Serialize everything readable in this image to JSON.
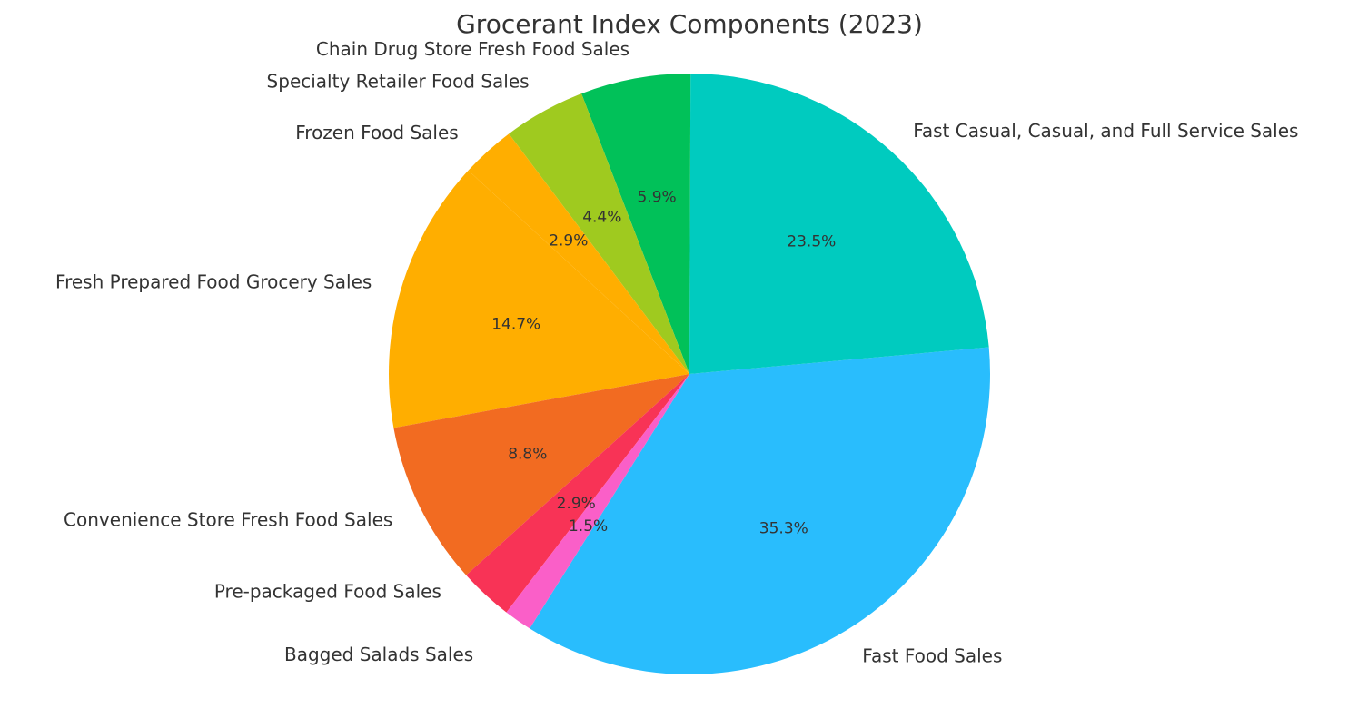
{
  "chart_data": {
    "type": "pie",
    "title": "Grocerant Index Components (2023)",
    "slices": [
      {
        "label": "Fast Food Sales",
        "value": 35.3,
        "pct_label": "35.3%",
        "color": "#29BDFD"
      },
      {
        "label": "Fast Casual, Casual, and Full Service Sales",
        "value": 23.5,
        "pct_label": "23.5%",
        "color": "#00CBBF"
      },
      {
        "label": "Chain Drug Store Fresh Food Sales",
        "value": 5.9,
        "pct_label": "5.9%",
        "color": "#01C159"
      },
      {
        "label": "Specialty Retailer Food Sales",
        "value": 4.4,
        "pct_label": "4.4%",
        "color": "#9FCA1F"
      },
      {
        "label": "Frozen Food Sales",
        "value": 2.9,
        "pct_label": "2.9%",
        "color": "#FFAE00"
      },
      {
        "label": "Fresh Prepared Food Grocery Sales",
        "value": 14.7,
        "pct_label": "14.7%",
        "color": "#FFAE00"
      },
      {
        "label": "Convenience Store Fresh Food Sales",
        "value": 8.8,
        "pct_label": "8.8%",
        "color": "#F26B21"
      },
      {
        "label": "Pre-packaged Food Sales",
        "value": 2.9,
        "pct_label": "2.9%",
        "color": "#F83356"
      },
      {
        "label": "Bagged Salads Sales",
        "value": 1.5,
        "pct_label": "1.5%",
        "color": "#FA5FC8"
      }
    ],
    "start_angle_deg": 237.9,
    "direction": "counterclockwise",
    "legend": "none"
  }
}
